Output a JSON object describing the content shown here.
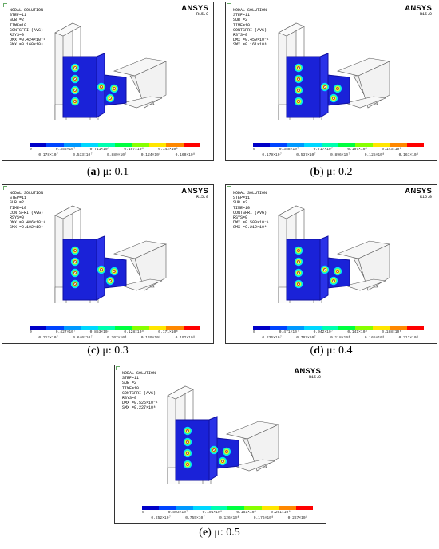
{
  "panels": [
    {
      "letter": "a",
      "caption": "μ: 0.1",
      "header": "ANSYS",
      "release": "R15.0",
      "info": [
        "NODAL SOLUTION",
        "STEP=11",
        "SUB =2",
        "TIME=10",
        "CONTSFRI (AVG)",
        "RSYS=0",
        "DMX =0.424×10⁻¹",
        "SMX =0.160×10⁸"
      ],
      "legend_upper": [
        "0",
        "0.356×10⁷",
        "0.711×10⁷",
        "0.107×10⁸",
        "0.142×10⁸"
      ],
      "legend_lower": [
        "0.178×10⁷",
        "0.533×10⁷",
        "0.889×10⁷",
        "0.124×10⁸",
        "0.160×10⁸"
      ]
    },
    {
      "letter": "b",
      "caption": "μ: 0.2",
      "header": "ANSYS",
      "release": "R15.0",
      "info": [
        "NODAL SOLUTION",
        "STEP=11",
        "SUB =2",
        "TIME=10",
        "CONTSFRI (AVG)",
        "RSYS=0",
        "DMX =0.459×10⁻¹",
        "SMX =0.161×10⁸"
      ],
      "legend_upper": [
        "0",
        "0.358×10⁷",
        "0.717×10⁷",
        "0.107×10⁸",
        "0.143×10⁸"
      ],
      "legend_lower": [
        "0.179×10⁷",
        "0.537×10⁷",
        "0.896×10⁷",
        "0.125×10⁸",
        "0.161×10⁸"
      ]
    },
    {
      "letter": "c",
      "caption": "μ: 0.3",
      "header": "ANSYS",
      "release": "R15.0",
      "info": [
        "NODAL SOLUTION",
        "STEP=11",
        "SUB =2",
        "TIME=10",
        "CONTSFRI (AVG)",
        "RSYS=0",
        "DMX =0.486×10⁻¹",
        "SMX =0.192×10⁸"
      ],
      "legend_upper": [
        "0",
        "0.427×10⁷",
        "0.853×10⁷",
        "0.128×10⁸",
        "0.171×10⁸"
      ],
      "legend_lower": [
        "0.213×10⁷",
        "0.640×10⁷",
        "0.107×10⁸",
        "0.149×10⁸",
        "0.192×10⁸"
      ]
    },
    {
      "letter": "d",
      "caption": "μ: 0.4",
      "header": "ANSYS",
      "release": "R15.0",
      "info": [
        "NODAL SOLUTION",
        "STEP=11",
        "SUB =2",
        "TIME=10",
        "CONTSFRI (AVG)",
        "RSYS=0",
        "DMX =0.500×10⁻¹",
        "SMX =0.212×10⁸"
      ],
      "legend_upper": [
        "0",
        "0.471×10⁷",
        "0.942×10⁷",
        "0.141×10⁸",
        "0.188×10⁸"
      ],
      "legend_lower": [
        "0.236×10⁷",
        "0.707×10⁷",
        "0.118×10⁸",
        "0.165×10⁸",
        "0.212×10⁸"
      ]
    },
    {
      "letter": "e",
      "caption": "μ: 0.5",
      "header": "ANSYS",
      "release": "R15.0",
      "info": [
        "NODAL SOLUTION",
        "STEP=11",
        "SUB =2",
        "TIME=10",
        "CONTSFRI (AVG)",
        "RSYS=0",
        "DMX =0.525×10⁻¹",
        "SMX =0.227×10⁸"
      ],
      "legend_upper": [
        "0",
        "0.503×10⁷",
        "0.101×10⁸",
        "0.151×10⁸",
        "0.201×10⁸"
      ],
      "legend_lower": [
        "0.252×10⁷",
        "0.755×10⁷",
        "0.126×10⁸",
        "0.176×10⁸",
        "0.227×10⁸"
      ]
    }
  ],
  "colors": {
    "contour": [
      "#0000c8",
      "#0044ff",
      "#0099ff",
      "#00d8ff",
      "#00ffb0",
      "#00ff40",
      "#88ff00",
      "#ffe600",
      "#ff8800",
      "#ff0000"
    ],
    "plate": "#1a22d8",
    "steel": "#e8e8e8"
  }
}
